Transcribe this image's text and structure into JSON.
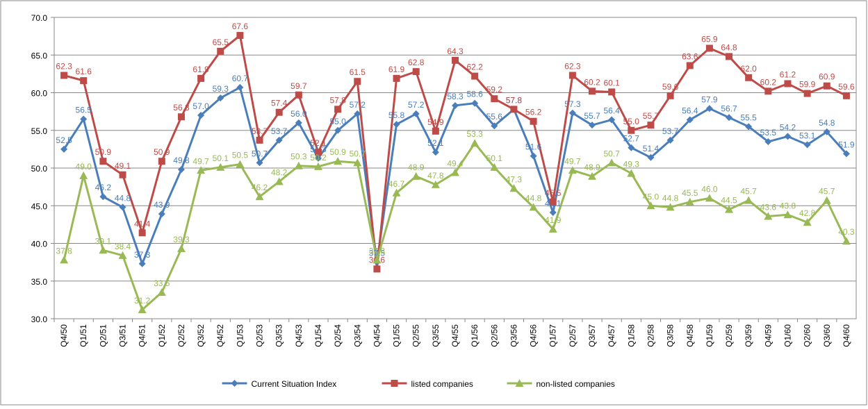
{
  "chart_data": {
    "type": "line",
    "categories": [
      "Q4/50",
      "Q1/51",
      "Q2/51",
      "Q3/51",
      "Q4/51",
      "Q1/52",
      "Q2/52",
      "Q3/52",
      "Q4/52",
      "Q1/53",
      "Q2/53",
      "Q3/53",
      "Q4/53",
      "Q1/54",
      "Q2/54",
      "Q3/54",
      "Q4/54",
      "Q1/55",
      "Q2/55",
      "Q3/55",
      "Q4/55",
      "Q1/56",
      "Q2/56",
      "Q3/56",
      "Q4/56",
      "Q1/57",
      "Q2/57",
      "Q3/57",
      "Q4/57",
      "Q1/58",
      "Q2/58",
      "Q3/58",
      "Q4/58",
      "Q1/59",
      "Q2/59",
      "Q3/59",
      "Q4/59",
      "Q1/60",
      "Q2/60",
      "Q3/60",
      "Q4/60"
    ],
    "series": [
      {
        "name": "Current Situation Index",
        "color": "#4a7ebb",
        "marker": "diamond",
        "values": [
          52.5,
          56.5,
          46.2,
          44.8,
          37.3,
          43.9,
          49.8,
          57.0,
          59.3,
          60.7,
          50.7,
          53.7,
          56.0,
          51.3,
          55.0,
          57.2,
          37.5,
          55.8,
          57.2,
          52.1,
          58.3,
          58.6,
          55.6,
          57.8,
          51.6,
          44.1,
          57.3,
          55.7,
          56.4,
          52.7,
          51.4,
          53.7,
          56.4,
          57.9,
          56.7,
          55.5,
          53.5,
          54.2,
          53.1,
          54.8,
          51.9
        ],
        "value_labels": [
          "52.5",
          "56.5",
          "46.2",
          "44.8",
          "37.3",
          "43.9",
          "49.8",
          "57.0",
          "59.3",
          "60.7",
          "50.7",
          "53.7",
          "56.0",
          "51.3",
          "55.0",
          "57.2",
          "37.5",
          "55.8",
          "57.2",
          "52.1",
          "58.3",
          "58.6",
          "55.6",
          "57.8",
          "51.6",
          "44.1",
          "57.3",
          "55.7",
          "56.4",
          "52.7",
          "51.4",
          "53.7",
          "56.4",
          "57.9",
          "56.7",
          "55.5",
          "53.5",
          "54.2",
          "53.1",
          "54.8",
          "51.9"
        ]
      },
      {
        "name": "listed companies",
        "color": "#be4b48",
        "marker": "square",
        "values": [
          62.3,
          61.6,
          50.9,
          49.1,
          41.4,
          50.9,
          56.8,
          61.9,
          65.5,
          67.6,
          53.7,
          57.4,
          59.7,
          52.1,
          57.8,
          61.5,
          36.6,
          61.9,
          62.8,
          54.9,
          64.3,
          62.2,
          59.2,
          57.8,
          56.2,
          45.5,
          62.3,
          60.2,
          60.1,
          55.0,
          55.7,
          59.6,
          63.6,
          65.9,
          64.8,
          62.0,
          60.2,
          61.2,
          59.9,
          60.9,
          59.6
        ],
        "value_labels": [
          "62.3",
          "61.6",
          "50.9",
          "49.1",
          "41.4",
          "50.9",
          "56.8",
          "61.9",
          "65.5",
          "67.6",
          "53.7",
          "57.4",
          "59.7",
          "52.1",
          "57.8",
          "61.5",
          "36.6",
          "61.9",
          "62.8",
          "54.9",
          "64.3",
          "62.2",
          "59.2",
          "57.8",
          "56.2",
          "45.5",
          "62.3",
          "60.2",
          "60.1",
          "55.0",
          "55.7",
          "59.6",
          "63.6",
          "65.9",
          "64.8",
          "62.0",
          "60.2",
          "61.2",
          "59.9",
          "60.9",
          "59.6"
        ]
      },
      {
        "name": "non-listed companies",
        "color": "#98b954",
        "marker": "triangle",
        "values": [
          37.8,
          49.0,
          39.1,
          38.4,
          31.2,
          33.5,
          39.3,
          49.7,
          50.1,
          50.5,
          46.2,
          48.2,
          50.3,
          50.2,
          50.9,
          50.7,
          37.8,
          46.7,
          48.9,
          47.8,
          49.4,
          53.3,
          50.1,
          47.3,
          44.8,
          41.9,
          49.7,
          48.9,
          50.7,
          49.3,
          45.0,
          44.8,
          45.5,
          46.0,
          44.5,
          45.7,
          43.6,
          43.8,
          42.8,
          45.7,
          40.3
        ],
        "value_labels": [
          "37.8",
          "49.0",
          "39.1",
          "38.4",
          "31.2",
          "33.5",
          "39.3",
          "49.7",
          "50.1",
          "50.5",
          "46.2",
          "48.2",
          "50.3",
          "50.2",
          "50.9",
          "50.7",
          "37.8",
          "46.7",
          "48.9",
          "47.8",
          "49.4",
          "53.3",
          "50.1",
          "47.3",
          "44.8",
          "41.9",
          "49.7",
          "48.9",
          "50.7",
          "49.3",
          "45.0",
          "44.8",
          "45.5",
          "46.0",
          "44.5",
          "45.7",
          "43.6",
          "43.8",
          "42.8",
          "45.7",
          "40.3"
        ]
      }
    ],
    "ylim": [
      30,
      70
    ],
    "yticks": [
      {
        "value": 30,
        "label": "30.0"
      },
      {
        "value": 35,
        "label": "35.0"
      },
      {
        "value": 40,
        "label": "40.0"
      },
      {
        "value": 45,
        "label": "45.0"
      },
      {
        "value": 50,
        "label": "50.0"
      },
      {
        "value": 55,
        "label": "55.0"
      },
      {
        "value": 60,
        "label": "60.0"
      },
      {
        "value": 65,
        "label": "65.0"
      },
      {
        "value": 70,
        "label": "70.0"
      }
    ],
    "grid": true,
    "legend": "bottom"
  }
}
